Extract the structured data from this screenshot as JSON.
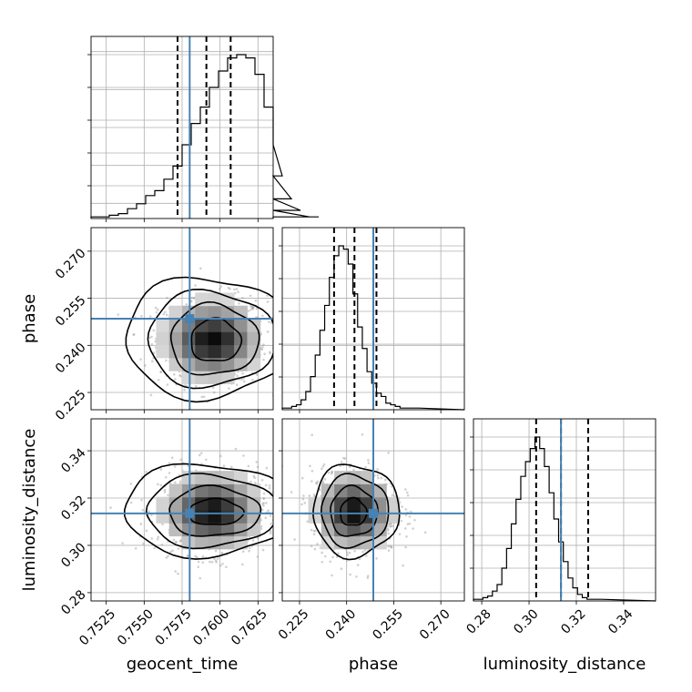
{
  "chart_data": {
    "type": "corner",
    "grid": true,
    "colors": {
      "truth": "#4682b4",
      "hist": "#000000",
      "grid": "#b0b0b0",
      "quantile": "#000000"
    },
    "parameters": [
      {
        "name": "geocent_time",
        "label": "geocent_time",
        "range": [
          0.7515,
          0.7635
        ],
        "ticks": [
          "0.7525",
          "0.7550",
          "0.7575",
          "0.7600",
          "0.7625"
        ],
        "tick_values": [
          0.7525,
          0.755,
          0.7575,
          0.76,
          0.7625
        ],
        "truth": 0.758,
        "quantiles": [
          0.7572,
          0.7591,
          0.7607
        ],
        "hist": {
          "bin_start": 0.7515,
          "bin_width": 0.0006,
          "counts": [
            1,
            1,
            2,
            3,
            6,
            9,
            14,
            17,
            24,
            32,
            45,
            58,
            68,
            80,
            90,
            98,
            100,
            98,
            88,
            68,
            45,
            26,
            12,
            5,
            1,
            1
          ]
        }
      },
      {
        "name": "phase",
        "label": "phase",
        "range": [
          0.2195,
          0.2775
        ],
        "ticks": [
          "0.225",
          "0.240",
          "0.255",
          "0.270"
        ],
        "tick_values": [
          0.225,
          0.24,
          0.255,
          0.27
        ],
        "truth": 0.2485,
        "quantiles": [
          0.236,
          0.2425,
          0.2495
        ],
        "hist": {
          "bin_start": 0.2195,
          "bin_width": 0.0015,
          "counts": [
            1,
            1,
            2,
            3,
            6,
            11,
            20,
            33,
            48,
            63,
            80,
            93,
            99,
            97,
            88,
            70,
            50,
            37,
            23,
            16,
            10,
            8,
            4,
            3,
            2,
            1,
            1,
            1,
            1
          ]
        }
      },
      {
        "name": "luminosity_distance",
        "label": "luminosity_distance",
        "range": [
          0.2765,
          0.3535
        ],
        "ticks": [
          "0.28",
          "0.30",
          "0.32",
          "0.34"
        ],
        "tick_values": [
          0.28,
          0.3,
          0.32,
          0.34
        ],
        "truth": 0.3135,
        "quantiles": [
          0.303,
          0.3135,
          0.325
        ],
        "hist": {
          "bin_start": 0.2765,
          "bin_width": 0.002,
          "counts": [
            1,
            1,
            2,
            3,
            6,
            10,
            20,
            32,
            47,
            62,
            76,
            85,
            93,
            100,
            93,
            82,
            66,
            50,
            36,
            24,
            14,
            8,
            4,
            2,
            1,
            1,
            1
          ]
        }
      }
    ],
    "pairs": [
      {
        "x": "geocent_time",
        "y": "phase",
        "center": [
          0.7595,
          0.2418
        ],
        "sigma": [
          0.0017,
          0.0066
        ],
        "contours": [
          {
            "level": 0.5,
            "cx": 0.7597,
            "cy": 0.2415,
            "rx": 0.00165,
            "ry": 0.0068
          },
          {
            "level": 1.0,
            "cx": 0.7596,
            "cy": 0.2417,
            "rx": 0.0029,
            "ry": 0.0113
          },
          {
            "level": 1.5,
            "cx": 0.7594,
            "cy": 0.242,
            "rx": 0.0042,
            "ry": 0.0152
          },
          {
            "level": 2.0,
            "cx": 0.7592,
            "cy": 0.2425,
            "rx": 0.0055,
            "ry": 0.0192
          }
        ]
      },
      {
        "x": "geocent_time",
        "y": "luminosity_distance",
        "center": [
          0.7595,
          0.3145
        ],
        "sigma": [
          0.0017,
          0.0086
        ],
        "contours": [
          {
            "level": 0.5,
            "cx": 0.7597,
            "cy": 0.314,
            "rx": 0.0018,
            "ry": 0.0055
          },
          {
            "level": 1.0,
            "cx": 0.7596,
            "cy": 0.3142,
            "rx": 0.003,
            "ry": 0.0105
          },
          {
            "level": 1.5,
            "cx": 0.7594,
            "cy": 0.3145,
            "rx": 0.0043,
            "ry": 0.0153
          },
          {
            "level": 2.0,
            "cx": 0.7592,
            "cy": 0.315,
            "rx": 0.0056,
            "ry": 0.0195
          }
        ]
      },
      {
        "x": "phase",
        "y": "luminosity_distance",
        "center": [
          0.2425,
          0.3145
        ],
        "sigma": [
          0.0065,
          0.0086
        ],
        "contours": [
          {
            "level": 0.5,
            "cx": 0.2421,
            "cy": 0.314,
            "rx": 0.0042,
            "ry": 0.0058
          },
          {
            "level": 1.0,
            "cx": 0.2422,
            "cy": 0.3142,
            "rx": 0.0075,
            "ry": 0.0105
          },
          {
            "level": 1.5,
            "cx": 0.2425,
            "cy": 0.3145,
            "rx": 0.0107,
            "ry": 0.0152
          },
          {
            "level": 2.0,
            "cx": 0.2428,
            "cy": 0.3148,
            "rx": 0.0137,
            "ry": 0.0195
          }
        ]
      }
    ]
  }
}
